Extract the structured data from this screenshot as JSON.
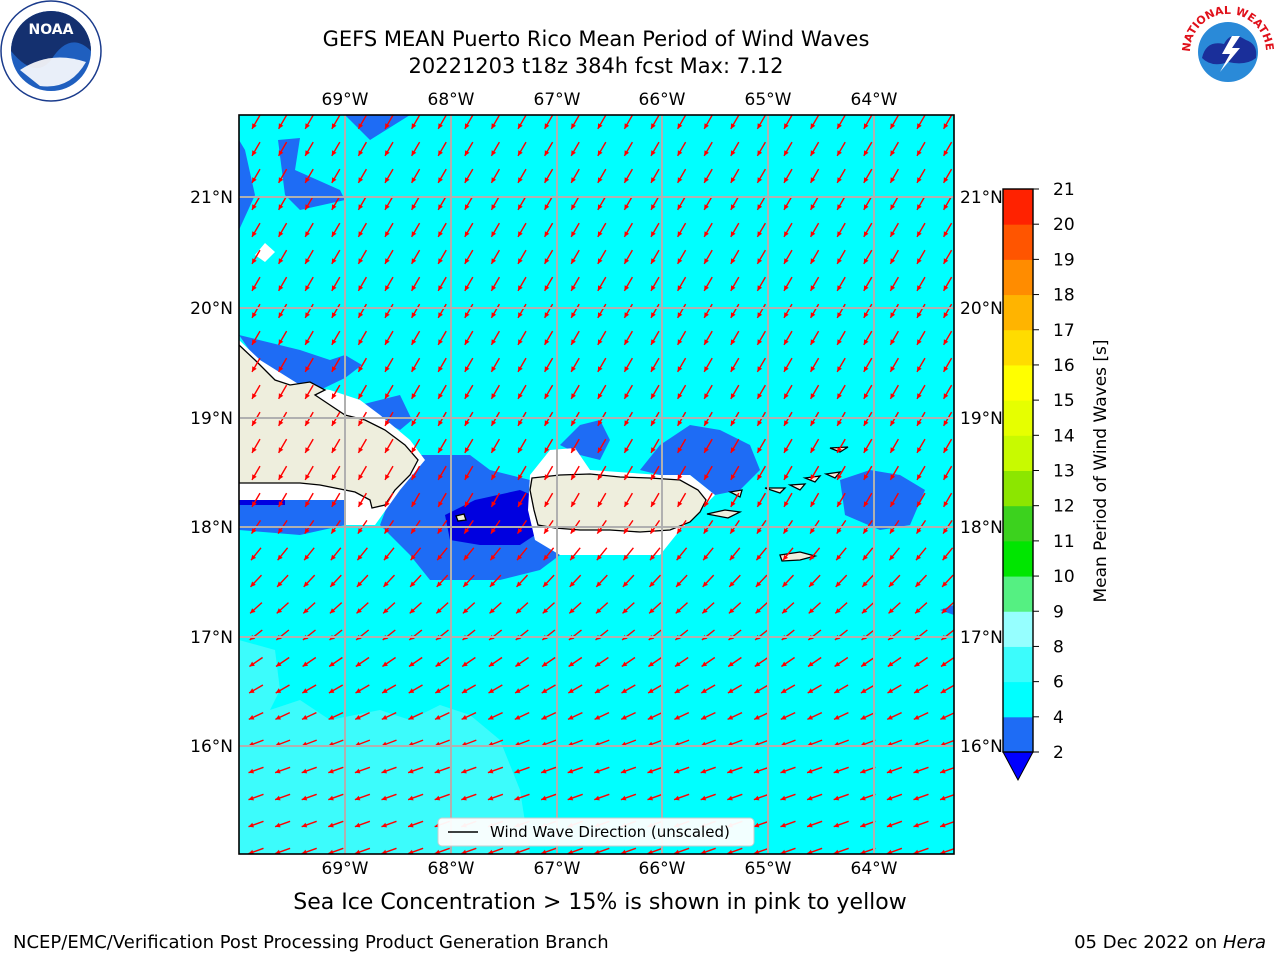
{
  "title": {
    "line1": "GEFS MEAN Puerto Rico Mean Period of Wind Waves",
    "line2": "20221203 t18z 384h fcst   Max: 7.12"
  },
  "map": {
    "lon_labels": [
      "69°W",
      "68°W",
      "67°W",
      "66°W",
      "65°W",
      "64°W"
    ],
    "lat_labels": [
      "21°N",
      "20°N",
      "19°N",
      "18°N",
      "17°N",
      "16°N"
    ],
    "legend_label": "Wind Wave Direction (unscaled)",
    "ocean_color": "#00ffff",
    "land_color": "#eeeedd",
    "arrow_color": "#ff0000"
  },
  "colorbar": {
    "label": "Mean Period of Wind Waves [s]",
    "ticks": [
      "2",
      "4",
      "6",
      "8",
      "9",
      "10",
      "11",
      "12",
      "13",
      "14",
      "15",
      "16",
      "17",
      "18",
      "19",
      "20",
      "21"
    ],
    "colors": [
      "#1e6cf5",
      "#00ffff",
      "#3cfcfc",
      "#96ffff",
      "#55f082",
      "#00e600",
      "#3cd21e",
      "#8ce600",
      "#c8fa00",
      "#e6ff00",
      "#ffff00",
      "#ffdc00",
      "#ffb400",
      "#ff8c00",
      "#ff5500",
      "#ff2200"
    ],
    "under_color": "#0000ff"
  },
  "footer": {
    "sea_ice_note": "Sea Ice Concentration > 15% is shown in pink to yellow",
    "credit_left": "NCEP/EMC/Verification Post Processing Product Generation Branch",
    "credit_date": "05 Dec 2022 on ",
    "credit_host": "Hera"
  },
  "logos": {
    "noaa_text": "NOAA",
    "nws_text": "NATIONAL WEATHER SERVICE"
  }
}
